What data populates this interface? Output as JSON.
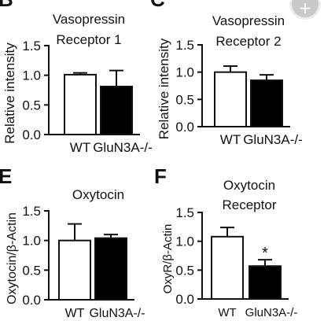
{
  "panels": {
    "B": {
      "letter": "B"
    },
    "C": {
      "letter": "C"
    },
    "E": {
      "letter": "E"
    },
    "F": {
      "letter": "F"
    }
  },
  "expand_button": {
    "icon": "zoom-plus-icon",
    "glyph": "+",
    "color": "#c9c9c9"
  },
  "colors": {
    "wt": "#ffffff",
    "ko": "#000000",
    "stroke": "#111111"
  },
  "chart_data": [
    {
      "id": "B",
      "type": "bar",
      "title": [
        "Vasopressin",
        "Receptor 1"
      ],
      "ylabel": "Relative intensity",
      "categories": [
        "WT",
        "GluN3A-/-"
      ],
      "values": [
        1.01,
        0.81
      ],
      "errors": [
        0.03,
        0.27
      ],
      "ylim": [
        0,
        1.5
      ],
      "yticks": [
        "0.0",
        "0.5",
        "1.0",
        "1.5"
      ],
      "significance": [
        "",
        ""
      ]
    },
    {
      "id": "C",
      "type": "bar",
      "title": [
        "Vasopressin",
        "Receptor 2"
      ],
      "ylabel": "Relative intensity",
      "categories": [
        "WT",
        "GluN3A-/-"
      ],
      "values": [
        1.0,
        0.85
      ],
      "errors": [
        0.11,
        0.1
      ],
      "ylim": [
        0,
        1.5
      ],
      "yticks": [
        "0.0",
        "0.5",
        "1.0",
        "1.5"
      ],
      "significance": [
        "",
        ""
      ]
    },
    {
      "id": "E",
      "type": "bar",
      "title": [
        "Oxytocin"
      ],
      "ylabel": "Oxytocin/β-Actin",
      "categories": [
        "WT",
        "GluN3A-/-"
      ],
      "values": [
        1.0,
        1.04
      ],
      "errors": [
        0.28,
        0.06
      ],
      "ylim": [
        0,
        1.5
      ],
      "yticks": [
        "0.0",
        "0.5",
        "1.0",
        "1.5"
      ],
      "significance": [
        "",
        ""
      ]
    },
    {
      "id": "F",
      "type": "bar",
      "title": [
        "Oxytocin",
        "Receptor"
      ],
      "ylabel": "OxyR/β-Actin",
      "categories": [
        "WT",
        "GluN3A-/-"
      ],
      "values": [
        1.08,
        0.57
      ],
      "errors": [
        0.16,
        0.11
      ],
      "ylim": [
        0,
        1.5
      ],
      "yticks": [
        "0.0",
        "0.5",
        "1.0",
        "1.5"
      ],
      "significance": [
        "",
        "*"
      ]
    }
  ]
}
